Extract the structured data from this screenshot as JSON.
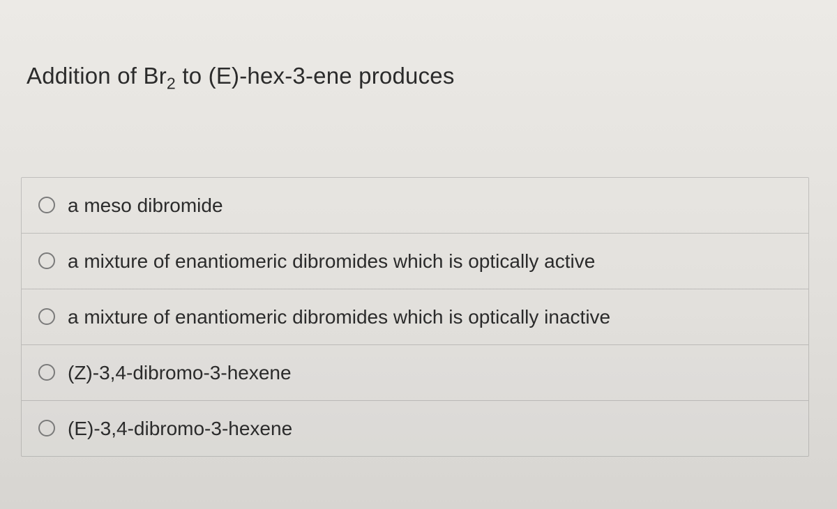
{
  "question": {
    "prefix": "Addition of Br",
    "subscript": "2",
    "suffix": " to (E)-hex-3-ene produces"
  },
  "options": [
    {
      "label": "a meso dibromide",
      "selected": false
    },
    {
      "label": "a mixture of enantiomeric dibromides which is optically active",
      "selected": false
    },
    {
      "label": "a mixture of enantiomeric dibromides which is optically inactive",
      "selected": false
    },
    {
      "label": "(Z)-3,4-dibromo-3-hexene",
      "selected": false
    },
    {
      "label": "(E)-3,4-dibromo-3-hexene",
      "selected": false
    }
  ],
  "style": {
    "background_color": "#e4e3e0",
    "text_color": "#2b2b2b",
    "border_color": "rgba(120,120,120,0.35)",
    "radio_border": "#7a7a7a",
    "question_fontsize": 33,
    "option_fontsize": 28
  }
}
